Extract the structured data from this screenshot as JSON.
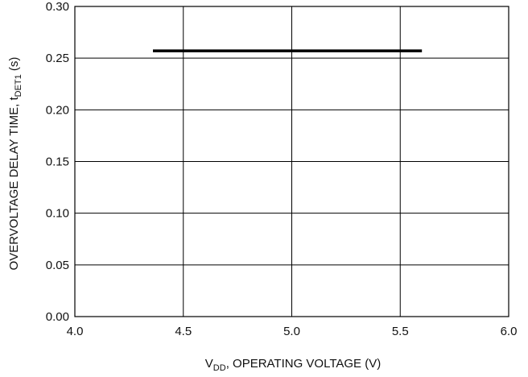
{
  "chart_data": {
    "type": "line",
    "xlabel": {
      "main": "V",
      "sub": "DD",
      "rest": ", OPERATING VOLTAGE (V)"
    },
    "ylabel": {
      "main": "OVERVOLTAGE DELAY TIME, t",
      "sub": "DET1",
      "rest": " (s)"
    },
    "xlim": [
      4.0,
      6.0
    ],
    "ylim": [
      0.0,
      0.3
    ],
    "xticks": [
      "4.0",
      "4.5",
      "5.0",
      "5.5",
      "6.0"
    ],
    "yticks": [
      "0.00",
      "0.05",
      "0.10",
      "0.15",
      "0.20",
      "0.25",
      "0.30"
    ],
    "grid": true,
    "series": [
      {
        "x": [
          4.36,
          5.6
        ],
        "y": [
          0.257,
          0.257
        ]
      }
    ]
  }
}
